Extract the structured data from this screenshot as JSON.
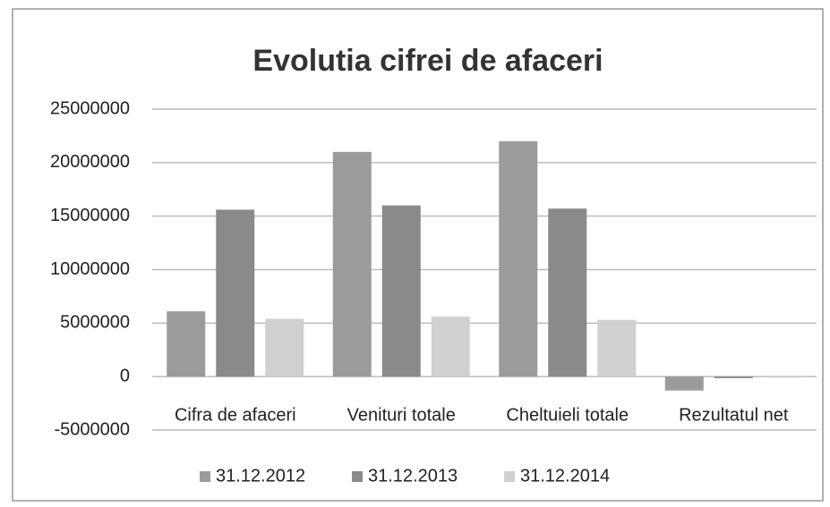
{
  "chart_data": {
    "type": "bar",
    "title": "Evolutia cifrei de afaceri",
    "categories": [
      "Cifra de afaceri",
      "Venituri totale",
      "Cheltuieli totale",
      "Rezultatul net"
    ],
    "series": [
      {
        "name": "31.12.2012",
        "color": "#9b9b9b",
        "values": [
          6100000,
          21000000,
          22000000,
          -1300000
        ]
      },
      {
        "name": "31.12.2013",
        "color": "#8a8a8a",
        "values": [
          15600000,
          16000000,
          15700000,
          -150000
        ]
      },
      {
        "name": "31.12.2014",
        "color": "#d0d0d0",
        "values": [
          5400000,
          5600000,
          5300000,
          -100000
        ]
      }
    ],
    "ylim": [
      -5000000,
      25000000
    ],
    "yticks": [
      -5000000,
      0,
      5000000,
      10000000,
      15000000,
      20000000,
      25000000
    ],
    "grid": true,
    "legend": "bottom"
  }
}
